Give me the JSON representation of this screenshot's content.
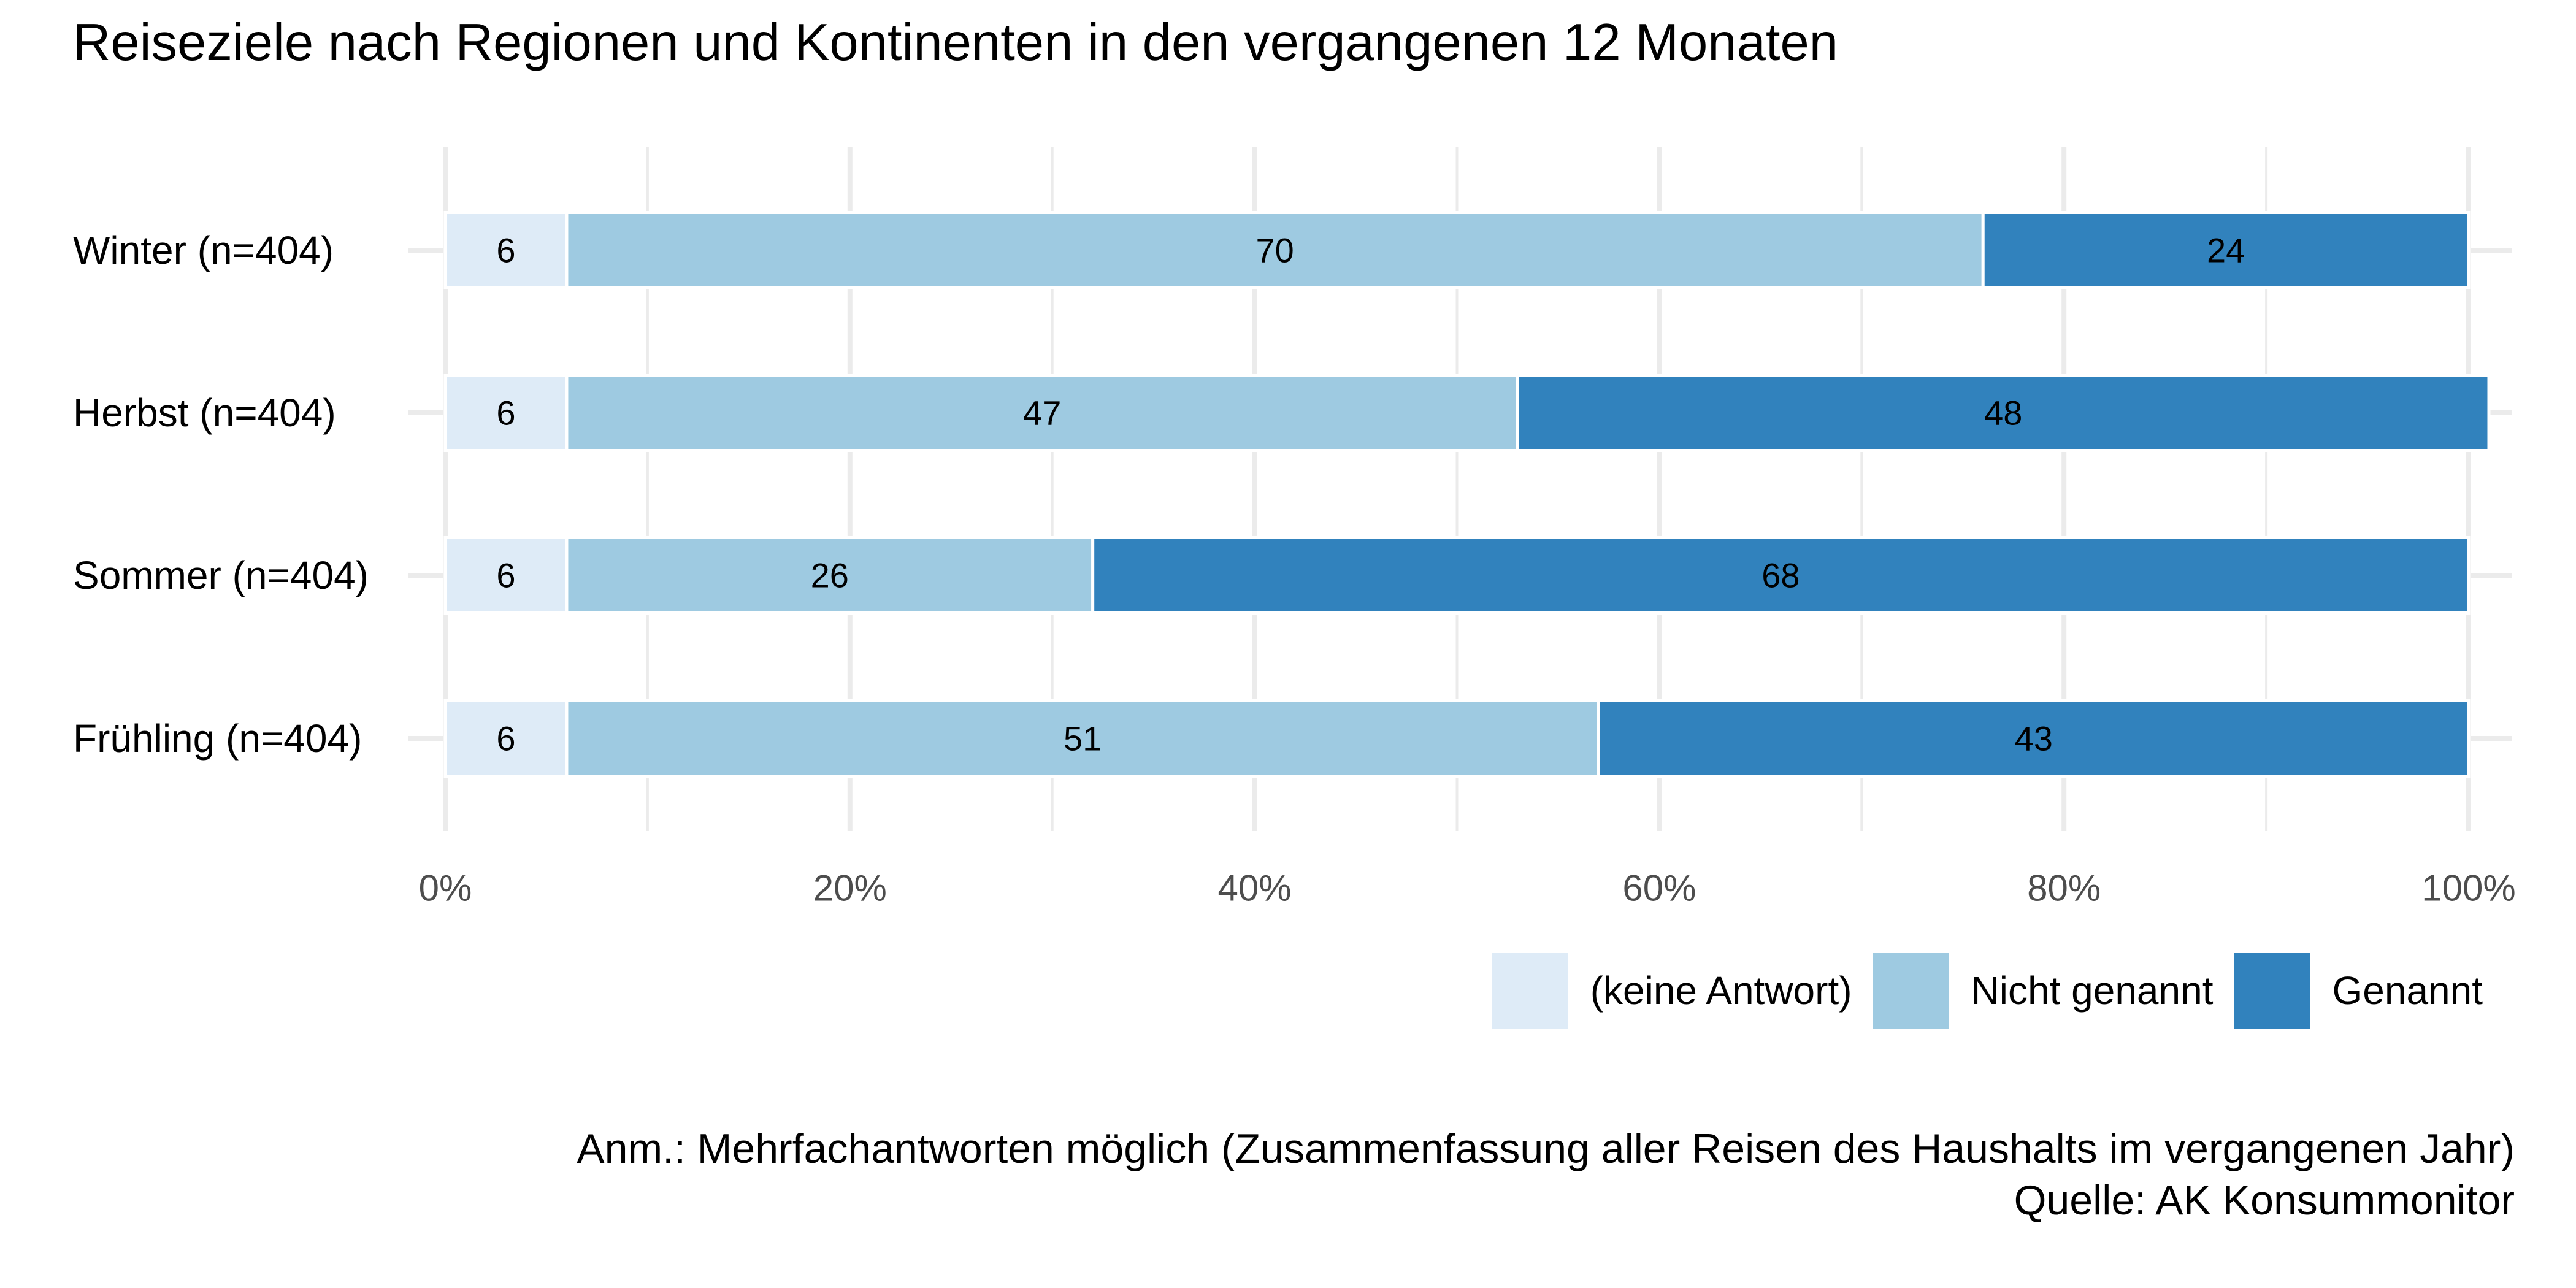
{
  "chart_data": {
    "type": "bar",
    "orientation": "horizontal",
    "stacked": true,
    "normalized": true,
    "title": "Reiseziele nach Regionen und Kontinenten in den vergangenen 12 Monaten",
    "categories": [
      "Winter (n=404)",
      "Herbst (n=404)",
      "Sommer (n=404)",
      "Frühling (n=404)"
    ],
    "series": [
      {
        "name": "(keine Antwort)",
        "color": "#deebf7",
        "values": [
          6,
          6,
          6,
          6
        ]
      },
      {
        "name": "Nicht genannt",
        "color": "#9ecae1",
        "values": [
          70,
          47,
          26,
          51
        ]
      },
      {
        "name": "Genannt",
        "color": "#3182bd",
        "values": [
          24,
          48,
          68,
          43
        ]
      }
    ],
    "xlim": [
      0,
      100
    ],
    "xticks": [
      0,
      20,
      40,
      60,
      80,
      100
    ],
    "xtick_labels": [
      "0%",
      "20%",
      "40%",
      "60%",
      "80%",
      "100%"
    ],
    "xlabel": "",
    "ylabel": "",
    "grid": true,
    "legend_position": "bottom-right",
    "caption_lines": [
      "Anm.: Mehrfachantworten möglich (Zusammenfassung aller Reisen des Haushalts im vergangenen Jahr)",
      "Quelle: AK Konsummonitor"
    ]
  }
}
